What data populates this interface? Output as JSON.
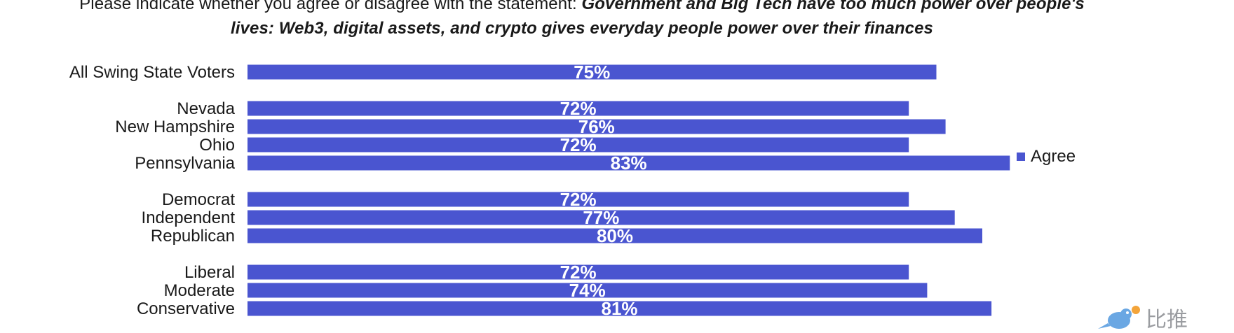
{
  "title": {
    "plain": "Please indicate whether you agree or disagree with the statement: ",
    "emphasis_line1": "Government and Big Tech have too much power over people's",
    "emphasis_line2": "lives: Web3, digital assets, and crypto gives everyday people power over their finances"
  },
  "legend": {
    "label": "Agree",
    "color": "#4a55d0"
  },
  "watermark": {
    "icon": "bird-icon",
    "text": "比推"
  },
  "chart_data": {
    "type": "bar",
    "orientation": "horizontal",
    "title": "Please indicate whether you agree or disagree with the statement: Government and Big Tech have too much power over people's lives: Web3, digital assets, and crypto gives everyday people power over their finances",
    "categories": [
      "All Swing State Voters",
      "Nevada",
      "New Hampshire",
      "Ohio",
      "Pennsylvania",
      "Democrat",
      "Independent",
      "Republican",
      "Liberal",
      "Moderate",
      "Conservative"
    ],
    "groups": [
      [
        0
      ],
      [
        1,
        2,
        3,
        4
      ],
      [
        5,
        6,
        7
      ],
      [
        8,
        9,
        10
      ]
    ],
    "series": [
      {
        "name": "Agree",
        "values": [
          75,
          72,
          76,
          72,
          83,
          72,
          77,
          80,
          72,
          74,
          81
        ],
        "labels": [
          "75%",
          "72%",
          "76%",
          "72%",
          "83%",
          "72%",
          "77%",
          "80%",
          "72%",
          "74%",
          "81%"
        ],
        "color": "#4a55d0"
      }
    ],
    "xlabel": "",
    "ylabel": "",
    "xlim": [
      0,
      100
    ],
    "grid": false,
    "legend_position": "right"
  }
}
